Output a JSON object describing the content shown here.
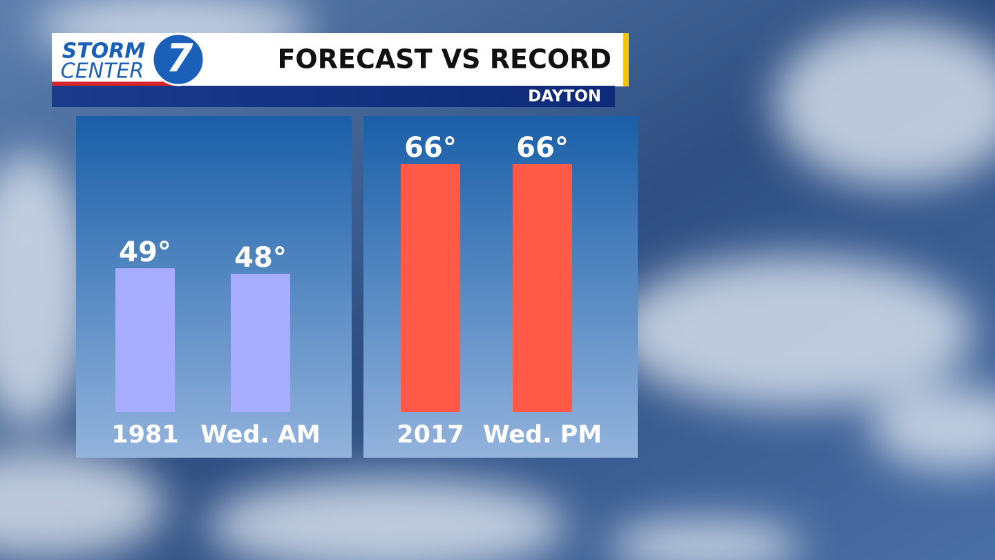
{
  "header": {
    "logo_top": "STORM",
    "logo_bottom": "CENTER",
    "logo_number": "7",
    "title": "FORECAST VS RECORD",
    "location": "DAYTON"
  },
  "chart_data": [
    {
      "type": "bar",
      "categories": [
        "1981",
        "Wed. AM"
      ],
      "values": [
        49,
        48
      ],
      "value_labels": [
        "49°",
        "48°"
      ],
      "color": "#a8acff",
      "ylim": [
        23,
        74
      ]
    },
    {
      "type": "bar",
      "categories": [
        "2017",
        "Wed. PM"
      ],
      "values": [
        66,
        66
      ],
      "value_labels": [
        "66°",
        "66°"
      ],
      "color": "#ff5a48",
      "ylim": [
        0,
        75
      ]
    }
  ]
}
